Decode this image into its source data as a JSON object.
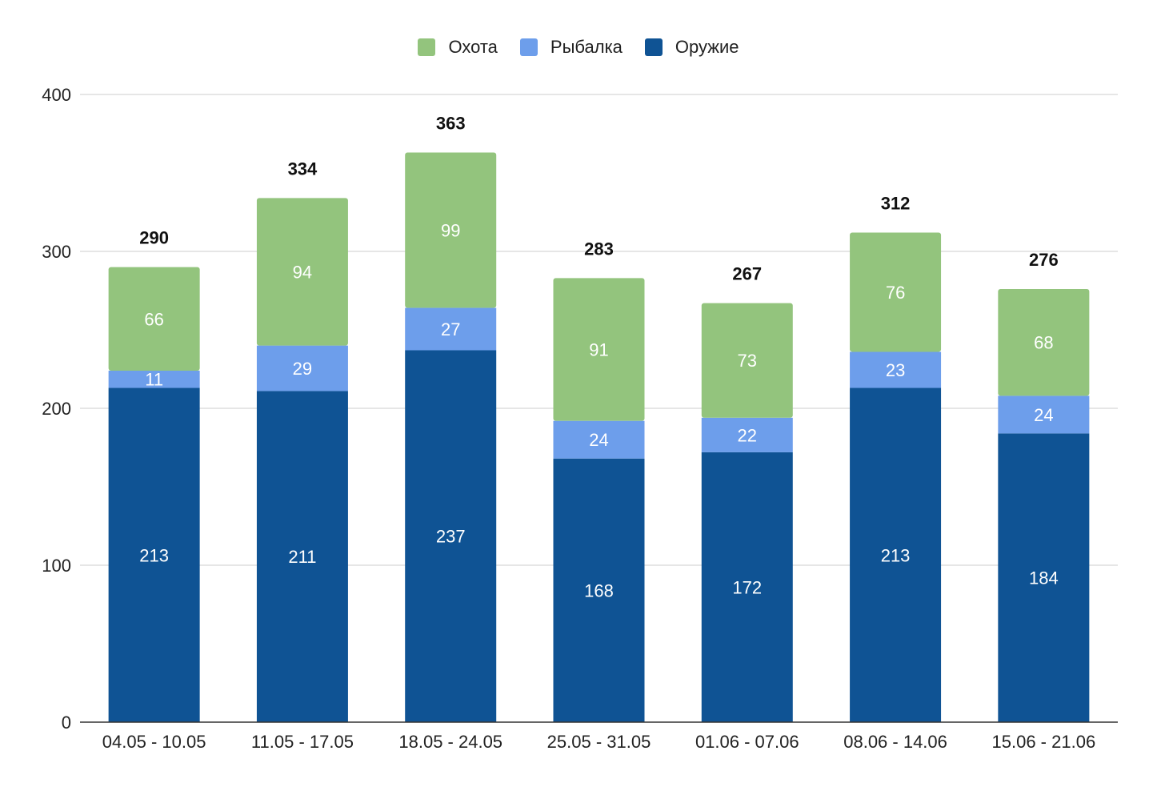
{
  "chart_data": {
    "type": "bar",
    "stacked": true,
    "title": "",
    "xlabel": "",
    "ylabel": "",
    "ylim": [
      0,
      400
    ],
    "yticks": [
      0,
      100,
      200,
      300,
      400
    ],
    "grid": true,
    "legend_position": "top",
    "categories": [
      "04.05 - 10.05",
      "11.05 - 17.05",
      "18.05 - 24.05",
      "25.05 - 31.05",
      "01.06 - 07.06",
      "08.06 - 14.06",
      "15.06 - 21.06"
    ],
    "series": [
      {
        "name": "Оружие",
        "color": "#0f5394",
        "values": [
          213,
          211,
          237,
          168,
          172,
          213,
          184
        ]
      },
      {
        "name": "Рыбалка",
        "color": "#6d9eeb",
        "values": [
          11,
          29,
          27,
          24,
          22,
          23,
          24
        ]
      },
      {
        "name": "Охота",
        "color": "#93c47d",
        "values": [
          66,
          94,
          99,
          91,
          73,
          76,
          68
        ]
      }
    ],
    "totals": [
      290,
      334,
      363,
      283,
      267,
      312,
      276
    ],
    "legend_order": [
      "Охота",
      "Рыбалка",
      "Оружие"
    ]
  }
}
